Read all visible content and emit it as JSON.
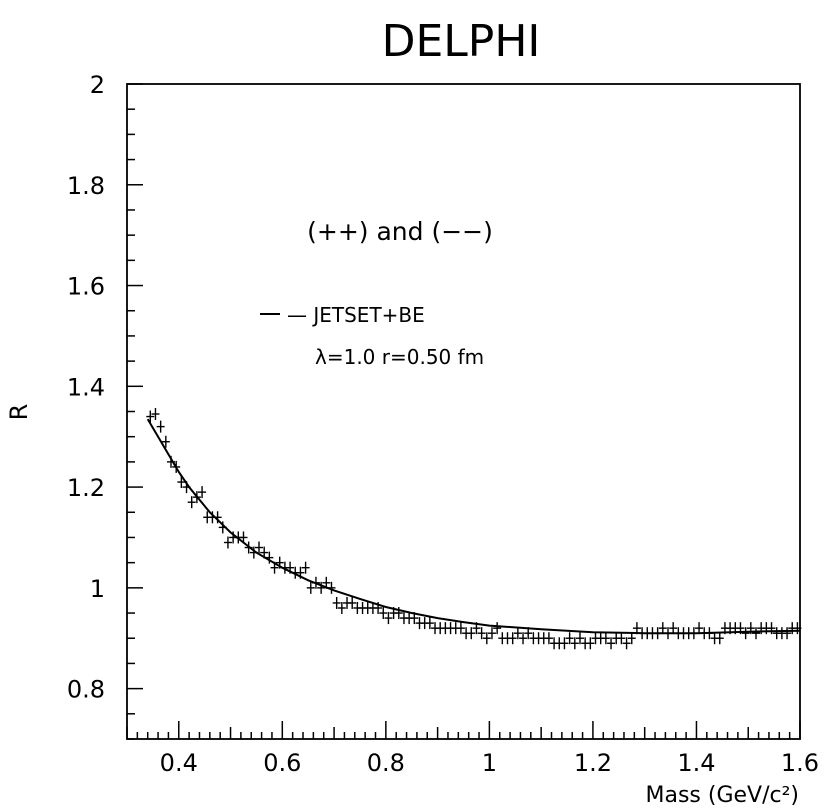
{
  "chart_data": {
    "type": "scatter",
    "title": "DELPHI",
    "xlabel": "Mass (GeV/c²)",
    "ylabel": "R",
    "xlim": [
      0.3,
      1.6
    ],
    "ylim": [
      0.7,
      2.0
    ],
    "x_ticks": [
      0.4,
      0.6,
      0.8,
      1,
      1.2,
      1.4,
      1.6
    ],
    "y_ticks": [
      0.8,
      1,
      1.2,
      1.4,
      1.6,
      1.8,
      2
    ],
    "x_tick_labels": [
      "0.4",
      "0.6",
      "0.8",
      "1",
      "1.2",
      "1.4",
      "1.6"
    ],
    "y_tick_labels": [
      "0.8",
      "1",
      "1.2",
      "1.4",
      "1.6",
      "1.8",
      "2"
    ],
    "grid": false,
    "annotations": [
      "(++) and (−−)",
      "— JETSET+BE",
      "λ=1.0 r=0.50 fm"
    ],
    "series": [
      {
        "name": "data",
        "style": "points-with-errors",
        "x": [
          0.345,
          0.355,
          0.365,
          0.375,
          0.385,
          0.395,
          0.405,
          0.415,
          0.425,
          0.435,
          0.445,
          0.455,
          0.465,
          0.475,
          0.485,
          0.495,
          0.505,
          0.515,
          0.525,
          0.535,
          0.545,
          0.555,
          0.565,
          0.575,
          0.585,
          0.595,
          0.605,
          0.615,
          0.625,
          0.635,
          0.645,
          0.655,
          0.665,
          0.675,
          0.685,
          0.695,
          0.705,
          0.715,
          0.725,
          0.735,
          0.745,
          0.755,
          0.765,
          0.775,
          0.785,
          0.795,
          0.805,
          0.815,
          0.825,
          0.835,
          0.845,
          0.855,
          0.865,
          0.875,
          0.885,
          0.895,
          0.905,
          0.915,
          0.925,
          0.935,
          0.945,
          0.955,
          0.965,
          0.975,
          0.985,
          0.995,
          1.005,
          1.015,
          1.025,
          1.035,
          1.045,
          1.055,
          1.065,
          1.075,
          1.085,
          1.095,
          1.105,
          1.115,
          1.125,
          1.135,
          1.145,
          1.155,
          1.165,
          1.175,
          1.185,
          1.195,
          1.205,
          1.215,
          1.225,
          1.235,
          1.245,
          1.255,
          1.265,
          1.275,
          1.285,
          1.295,
          1.305,
          1.315,
          1.325,
          1.335,
          1.345,
          1.355,
          1.365,
          1.375,
          1.385,
          1.395,
          1.405,
          1.415,
          1.425,
          1.435,
          1.445,
          1.455,
          1.465,
          1.475,
          1.485,
          1.495,
          1.505,
          1.515,
          1.525,
          1.535,
          1.545,
          1.555,
          1.565,
          1.575,
          1.585,
          1.595
        ],
        "y": [
          1.34,
          1.345,
          1.32,
          1.29,
          1.25,
          1.24,
          1.21,
          1.2,
          1.17,
          1.18,
          1.19,
          1.14,
          1.14,
          1.14,
          1.12,
          1.09,
          1.1,
          1.1,
          1.1,
          1.08,
          1.07,
          1.08,
          1.07,
          1.06,
          1.04,
          1.05,
          1.04,
          1.04,
          1.03,
          1.03,
          1.04,
          1.0,
          1.01,
          1.0,
          1.01,
          1.0,
          0.97,
          0.96,
          0.97,
          0.97,
          0.96,
          0.96,
          0.96,
          0.96,
          0.96,
          0.95,
          0.94,
          0.95,
          0.95,
          0.94,
          0.94,
          0.94,
          0.93,
          0.93,
          0.93,
          0.92,
          0.92,
          0.92,
          0.92,
          0.92,
          0.92,
          0.91,
          0.91,
          0.92,
          0.91,
          0.9,
          0.91,
          0.92,
          0.9,
          0.9,
          0.9,
          0.91,
          0.9,
          0.91,
          0.9,
          0.9,
          0.9,
          0.9,
          0.89,
          0.89,
          0.89,
          0.9,
          0.89,
          0.9,
          0.89,
          0.89,
          0.9,
          0.9,
          0.9,
          0.89,
          0.9,
          0.9,
          0.89,
          0.9,
          0.92,
          0.91,
          0.91,
          0.91,
          0.91,
          0.92,
          0.91,
          0.92,
          0.91,
          0.91,
          0.91,
          0.91,
          0.92,
          0.91,
          0.91,
          0.9,
          0.9,
          0.92,
          0.92,
          0.92,
          0.92,
          0.91,
          0.92,
          0.91,
          0.92,
          0.92,
          0.92,
          0.91,
          0.91,
          0.91,
          0.92,
          0.92
        ]
      },
      {
        "name": "JETSET+BE",
        "style": "line",
        "x": [
          0.34,
          0.36,
          0.38,
          0.4,
          0.42,
          0.44,
          0.46,
          0.48,
          0.5,
          0.55,
          0.6,
          0.65,
          0.7,
          0.75,
          0.8,
          0.85,
          0.9,
          0.95,
          1.0,
          1.1,
          1.2,
          1.3,
          1.4,
          1.5,
          1.6
        ],
        "y": [
          1.335,
          1.3,
          1.265,
          1.23,
          1.2,
          1.175,
          1.15,
          1.13,
          1.11,
          1.07,
          1.04,
          1.015,
          0.995,
          0.978,
          0.962,
          0.95,
          0.94,
          0.932,
          0.925,
          0.918,
          0.912,
          0.91,
          0.91,
          0.913,
          0.915
        ]
      }
    ]
  }
}
